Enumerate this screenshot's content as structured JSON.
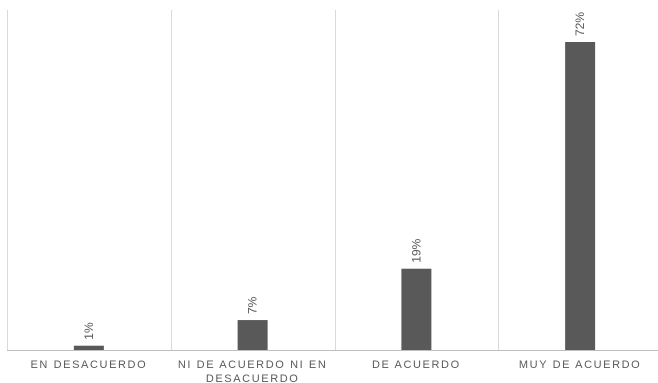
{
  "chart_data": {
    "type": "bar",
    "title": "",
    "xlabel": "",
    "ylabel": "",
    "categories": [
      [
        "EN DESACUERDO"
      ],
      [
        "NI DE ACUERDO NI EN",
        "DESACUERDO"
      ],
      [
        "DE ACUERDO"
      ],
      [
        "MUY DE ACUERDO"
      ]
    ],
    "values": [
      1,
      7,
      19,
      72
    ],
    "data_labels": [
      "1%",
      "7%",
      "19%",
      "72%"
    ],
    "ylim": [
      0,
      80
    ],
    "grid": "vertical category separators",
    "legend": "none",
    "colors": {
      "bar": "#595959",
      "grid": "#d9d9d9",
      "axis": "#bfbfbf",
      "text": "#595959"
    }
  }
}
